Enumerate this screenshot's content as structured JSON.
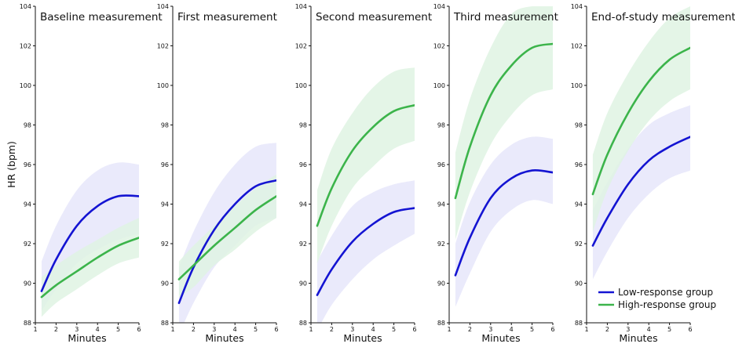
{
  "y_axis_label": "HR (bpm)",
  "colors": {
    "low": "#1414d2",
    "low_band": "#e6e6fa",
    "high": "#3cb44b",
    "high_band": "#dff3e3",
    "axis": "#111111"
  },
  "legend": {
    "items": [
      {
        "label": "Low-response group",
        "color": "#1414d2"
      },
      {
        "label": "High-response group",
        "color": "#3cb44b"
      }
    ],
    "placement": "bottom-right"
  },
  "chart_data": [
    {
      "type": "line",
      "title": "Baseline measurement",
      "xlabel": "Minutes",
      "ylabel": "HR (bpm)",
      "xlim": [
        1,
        6
      ],
      "ylim": [
        88,
        104
      ],
      "xticks": [
        1,
        2,
        3,
        4,
        5,
        6
      ],
      "yticks": [
        88,
        90,
        92,
        94,
        96,
        98,
        100,
        102,
        104
      ],
      "grid": false,
      "x": [
        1.3,
        2,
        3,
        4,
        5,
        6
      ],
      "series": [
        {
          "name": "Low-response group",
          "values": [
            89.6,
            91.2,
            92.9,
            93.9,
            94.4,
            94.4
          ],
          "band_lower": [
            88.6,
            89.7,
            91.0,
            91.7,
            92.2,
            92.5
          ],
          "band_upper": [
            91.1,
            92.9,
            94.7,
            95.7,
            96.1,
            96.0
          ]
        },
        {
          "name": "High-response group",
          "values": [
            89.3,
            89.9,
            90.6,
            91.3,
            91.9,
            92.3
          ],
          "band_lower": [
            88.3,
            89.0,
            89.7,
            90.4,
            91.0,
            91.3
          ],
          "band_upper": [
            90.3,
            90.9,
            91.6,
            92.2,
            92.8,
            93.3
          ]
        }
      ]
    },
    {
      "type": "line",
      "title": "First measurement",
      "xlabel": "Minutes",
      "ylabel": "",
      "xlim": [
        1,
        6
      ],
      "ylim": [
        88,
        104
      ],
      "xticks": [
        1,
        2,
        3,
        4,
        5,
        6
      ],
      "yticks": [
        88,
        90,
        92,
        94,
        96,
        98,
        100,
        102,
        104
      ],
      "grid": false,
      "x": [
        1.3,
        2,
        3,
        4,
        5,
        6
      ],
      "series": [
        {
          "name": "Low-response group",
          "values": [
            89.0,
            90.8,
            92.7,
            94.0,
            94.9,
            95.2
          ],
          "band_lower": [
            87.4,
            89.0,
            90.8,
            91.9,
            92.9,
            93.3
          ],
          "band_upper": [
            90.8,
            92.6,
            94.6,
            96.0,
            96.9,
            97.1
          ]
        },
        {
          "name": "High-response group",
          "values": [
            90.2,
            90.9,
            91.9,
            92.8,
            93.7,
            94.4
          ],
          "band_lower": [
            89.3,
            89.8,
            90.9,
            91.7,
            92.6,
            93.3
          ],
          "band_upper": [
            91.1,
            91.9,
            92.9,
            93.9,
            94.8,
            95.5
          ]
        }
      ]
    },
    {
      "type": "line",
      "title": "Second measurement",
      "xlabel": "Minutes",
      "ylabel": "",
      "xlim": [
        1,
        6
      ],
      "ylim": [
        88,
        104
      ],
      "xticks": [
        1,
        2,
        3,
        4,
        5,
        6
      ],
      "yticks": [
        88,
        90,
        92,
        94,
        96,
        98,
        100,
        102,
        104
      ],
      "grid": false,
      "x": [
        1.3,
        2,
        3,
        4,
        5,
        6
      ],
      "series": [
        {
          "name": "Low-response group",
          "values": [
            89.4,
            90.7,
            92.1,
            93.0,
            93.6,
            93.8
          ],
          "band_lower": [
            87.6,
            88.9,
            90.2,
            91.2,
            91.9,
            92.5
          ],
          "band_upper": [
            91.1,
            92.4,
            93.9,
            94.6,
            95.0,
            95.2
          ]
        },
        {
          "name": "High-response group",
          "values": [
            92.9,
            94.8,
            96.7,
            97.9,
            98.7,
            99.0
          ],
          "band_lower": [
            91.0,
            92.9,
            94.8,
            95.9,
            96.8,
            97.2
          ],
          "band_upper": [
            94.7,
            96.8,
            98.6,
            99.9,
            100.7,
            100.9
          ]
        }
      ]
    },
    {
      "type": "line",
      "title": "Third measurement",
      "xlabel": "Minutes",
      "ylabel": "",
      "xlim": [
        1,
        6
      ],
      "ylim": [
        88,
        104
      ],
      "xticks": [
        1,
        2,
        3,
        4,
        5,
        6
      ],
      "yticks": [
        88,
        90,
        92,
        94,
        96,
        98,
        100,
        102,
        104
      ],
      "grid": false,
      "x": [
        1.3,
        2,
        3,
        4,
        5,
        6
      ],
      "series": [
        {
          "name": "Low-response group",
          "values": [
            90.4,
            92.3,
            94.3,
            95.3,
            95.7,
            95.6
          ],
          "band_lower": [
            88.8,
            90.5,
            92.6,
            93.7,
            94.2,
            94.0
          ],
          "band_upper": [
            92.0,
            94.1,
            96.0,
            97.0,
            97.4,
            97.3
          ]
        },
        {
          "name": "High-response group",
          "values": [
            94.3,
            96.9,
            99.5,
            101.0,
            101.9,
            102.1
          ],
          "band_lower": [
            92.2,
            94.6,
            97.0,
            98.5,
            99.5,
            99.8
          ],
          "band_upper": [
            96.6,
            99.3,
            101.9,
            103.6,
            104.0,
            104.0
          ]
        }
      ]
    },
    {
      "type": "line",
      "title": "End-of-study measurement",
      "xlabel": "Minutes",
      "ylabel": "",
      "xlim": [
        1,
        6
      ],
      "ylim": [
        88,
        104
      ],
      "xticks": [
        1,
        2,
        3,
        4,
        5,
        6
      ],
      "yticks": [
        88,
        90,
        92,
        94,
        96,
        98,
        100,
        102,
        104
      ],
      "grid": false,
      "x": [
        1.3,
        2,
        3,
        4,
        5,
        6
      ],
      "series": [
        {
          "name": "Low-response group",
          "values": [
            91.9,
            93.3,
            95.0,
            96.2,
            96.9,
            97.4
          ],
          "band_lower": [
            90.2,
            91.6,
            93.3,
            94.5,
            95.3,
            95.7
          ],
          "band_upper": [
            93.7,
            95.1,
            96.8,
            98.0,
            98.6,
            99.0
          ]
        },
        {
          "name": "High-response group",
          "values": [
            94.5,
            96.5,
            98.6,
            100.2,
            101.3,
            101.9
          ],
          "band_lower": [
            92.6,
            94.7,
            96.7,
            98.2,
            99.2,
            99.8
          ],
          "band_upper": [
            96.5,
            98.6,
            100.6,
            102.2,
            103.4,
            104.0
          ]
        }
      ]
    }
  ]
}
